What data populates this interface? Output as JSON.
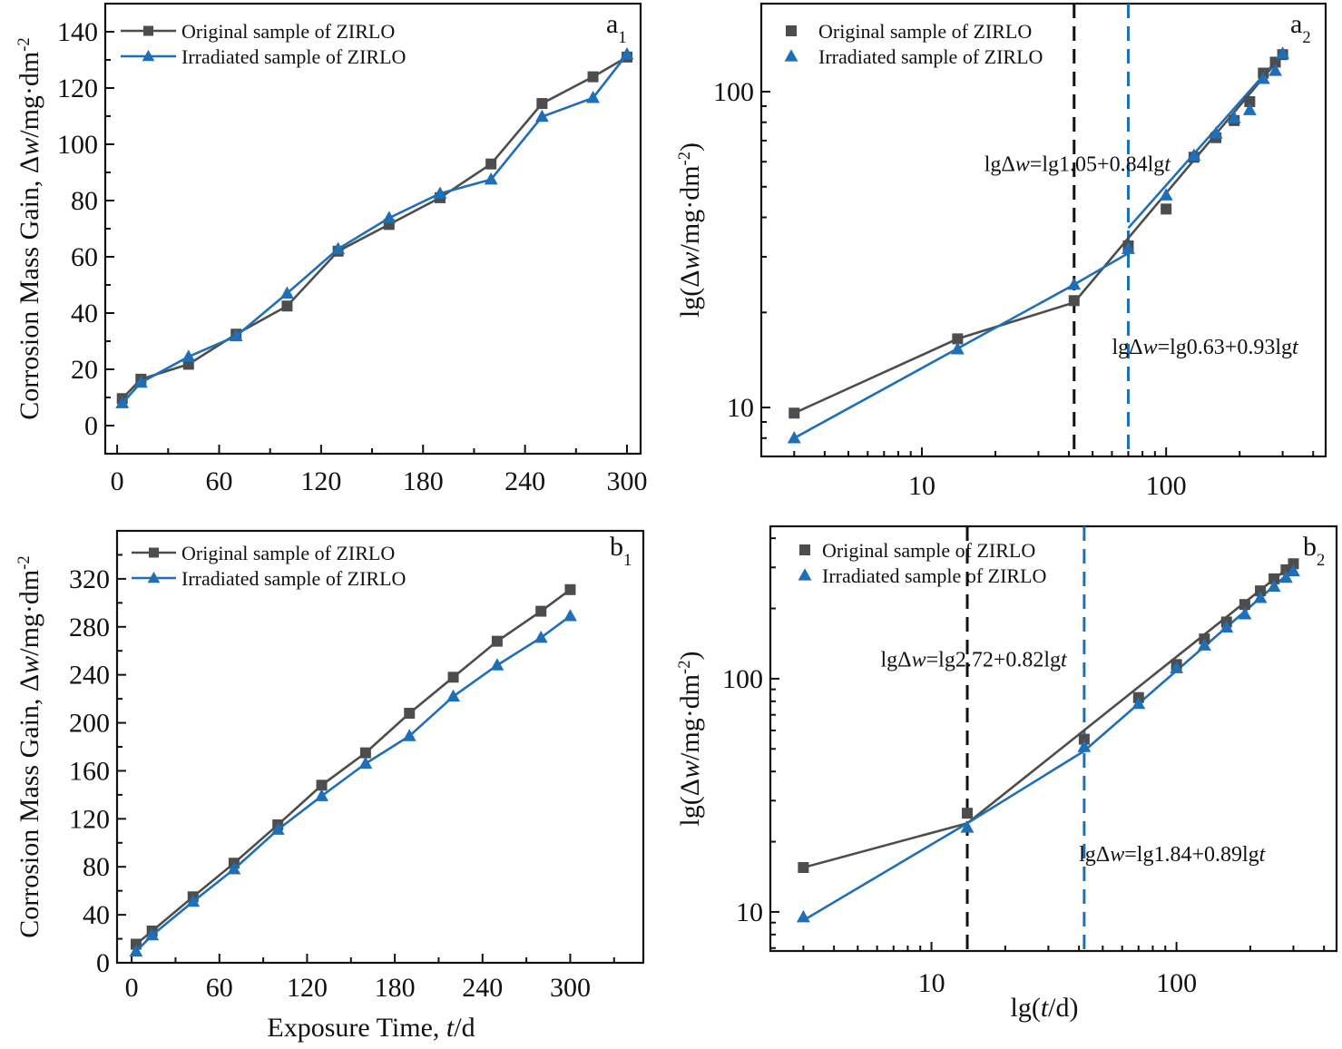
{
  "colors": {
    "original": "#4d4d4d",
    "irradiated": "#1f6fb8",
    "black_dash": "#111111",
    "blue_dash": "#1f6fb8",
    "axis": "#111111"
  },
  "chart_data": [
    {
      "id": "a1",
      "type": "line",
      "panel_label": "a",
      "panel_sub": "1",
      "xlabel": "",
      "ylabel": "Corrosion Mass Gain, Δw/mg·dm⁻²",
      "ylabel_parts": {
        "pre": "Corrosion Mass Gain, Δ",
        "italic": "w",
        "post": "/mg·dm",
        "sup": "-2"
      },
      "xscale": "linear",
      "yscale": "linear",
      "xlim": [
        -7,
        308
      ],
      "ylim": [
        -10,
        150
      ],
      "xticks": [
        0,
        60,
        120,
        180,
        240,
        300
      ],
      "xtick_labels": [
        "0",
        "60",
        "120",
        "180",
        "240",
        "300"
      ],
      "yticks": [
        0,
        20,
        40,
        60,
        80,
        100,
        120,
        140
      ],
      "ytick_labels": [
        "0",
        "20",
        "40",
        "60",
        "80",
        "100",
        "120",
        "140"
      ],
      "legend": {
        "position": "top-left",
        "style": "line"
      },
      "x": [
        3,
        14,
        42,
        70,
        100,
        130,
        160,
        190,
        220,
        250,
        280,
        300
      ],
      "series": [
        {
          "name": "Original sample of ZIRLO",
          "marker": "square",
          "values": [
            9.6,
            16.5,
            21.8,
            32.5,
            42.5,
            62,
            71.5,
            81,
            93,
            114.5,
            124,
            131
          ]
        },
        {
          "name": "Irradiated sample of ZIRLO",
          "marker": "triangle",
          "values": [
            8,
            15.3,
            24.5,
            31.8,
            47,
            62.8,
            73.8,
            82.5,
            87.5,
            109.8,
            116.5,
            132
          ]
        }
      ],
      "fits": [],
      "vlines": [],
      "annotations": []
    },
    {
      "id": "a2",
      "type": "scatter",
      "panel_label": "a",
      "panel_sub": "2",
      "xlabel": "",
      "ylabel": "lg(Δw/mg·dm⁻²)",
      "ylabel_parts": {
        "pre": "lg(Δ",
        "italic": "w",
        "post": "/mg·dm",
        "sup": "-2",
        "close": ")"
      },
      "xscale": "log",
      "yscale": "log",
      "xlim": [
        2.2,
        450
      ],
      "ylim": [
        7.0,
        190
      ],
      "xticks": [
        10,
        100
      ],
      "xtick_labels": [
        "10",
        "100"
      ],
      "yticks": [
        10,
        100
      ],
      "ytick_labels": [
        "10",
        "100"
      ],
      "legend": {
        "position": "top-left",
        "style": "marker"
      },
      "x": [
        3,
        14,
        42,
        70,
        100,
        130,
        160,
        190,
        220,
        250,
        280,
        300
      ],
      "series": [
        {
          "name": "Original sample of ZIRLO",
          "marker": "square",
          "values": [
            9.6,
            16.5,
            21.8,
            32.5,
            42.5,
            62,
            71.5,
            81,
            93,
            114.5,
            124,
            131
          ]
        },
        {
          "name": "Irradiated sample of ZIRLO",
          "marker": "triangle",
          "values": [
            8,
            15.3,
            24.5,
            31.8,
            47,
            62.8,
            73.8,
            82.5,
            87.5,
            109.8,
            116.5,
            132
          ]
        }
      ],
      "fits": [
        {
          "series": 0,
          "points": [
            [
              3,
              9.6
            ],
            [
              14,
              16.5
            ],
            [
              42,
              21.5
            ],
            [
              300,
              131
            ]
          ]
        },
        {
          "series": 1,
          "points": [
            [
              3,
              8
            ],
            [
              42,
              24.5
            ],
            [
              70,
              30.8
            ]
          ]
        },
        {
          "series": 1,
          "points": [
            [
              70,
              37
            ],
            [
              300,
              132
            ]
          ]
        }
      ],
      "vlines": [
        {
          "x": 42,
          "color": "black"
        },
        {
          "x": 70,
          "color": "blue"
        }
      ],
      "annotations": [
        {
          "pre": "lgΔ",
          "italic": "w",
          "mid": "=lg1.05+0.84lg",
          "italic2": "t",
          "anchor_x": 18,
          "anchor_y": 56
        },
        {
          "pre": "lgΔ",
          "italic": "w",
          "mid": "=lg0.63+0.93lg",
          "italic2": "t",
          "anchor_x": 60,
          "anchor_y": 14.8
        }
      ]
    },
    {
      "id": "b1",
      "type": "line",
      "panel_label": "b",
      "panel_sub": "1",
      "xlabel": "Exposure Time, t/d",
      "xlabel_parts": {
        "pre": "Exposure Time, ",
        "italic": "t",
        "post": "/d"
      },
      "ylabel": "Corrosion Mass Gain, Δw/mg·dm⁻²",
      "ylabel_parts": {
        "pre": "Corrosion Mass Gain, Δ",
        "italic": "w",
        "post": "/mg·dm",
        "sup": "-2"
      },
      "xscale": "linear",
      "yscale": "linear",
      "xlim": [
        -10,
        350
      ],
      "ylim": [
        0,
        360
      ],
      "xticks": [
        0,
        60,
        120,
        180,
        240,
        300
      ],
      "xtick_labels": [
        "0",
        "60",
        "120",
        "180",
        "240",
        "300"
      ],
      "yticks": [
        0,
        40,
        80,
        120,
        160,
        200,
        240,
        280,
        320
      ],
      "ytick_labels": [
        "0",
        "40",
        "80",
        "120",
        "160",
        "200",
        "240",
        "280",
        "320"
      ],
      "legend": {
        "position": "top-left",
        "style": "line"
      },
      "x": [
        3,
        14,
        42,
        70,
        100,
        130,
        160,
        190,
        220,
        250,
        280,
        300
      ],
      "series": [
        {
          "name": "Original sample of ZIRLO",
          "marker": "square",
          "values": [
            15.5,
            26.5,
            55,
            83,
            115,
            148,
            175,
            208,
            238,
            268,
            293,
            311
          ]
        },
        {
          "name": "Irradiated sample of ZIRLO",
          "marker": "triangle",
          "values": [
            9.5,
            23,
            51,
            78,
            111,
            139,
            166,
            189,
            222,
            248,
            271,
            289
          ]
        }
      ],
      "fits": [],
      "vlines": [],
      "annotations": []
    },
    {
      "id": "b2",
      "type": "scatter",
      "panel_label": "b",
      "panel_sub": "2",
      "xlabel": "lg(t/d)",
      "xlabel_parts": {
        "pre": "lg(",
        "italic": "t",
        "post": "/d)"
      },
      "ylabel": "lg(Δw/mg·dm⁻²)",
      "ylabel_parts": {
        "pre": "lg(Δ",
        "italic": "w",
        "post": "/mg·dm",
        "sup": "-2",
        "close": ")"
      },
      "xscale": "log",
      "yscale": "log",
      "xlim": [
        2.2,
        450
      ],
      "ylim": [
        6.8,
        450
      ],
      "xticks": [
        10,
        100
      ],
      "xtick_labels": [
        "10",
        "100"
      ],
      "yticks": [
        10,
        100
      ],
      "ytick_labels": [
        "10",
        "100"
      ],
      "legend": {
        "position": "top-left",
        "style": "marker"
      },
      "x": [
        3,
        14,
        42,
        70,
        100,
        130,
        160,
        190,
        220,
        250,
        280,
        300
      ],
      "series": [
        {
          "name": "Original sample of ZIRLO",
          "marker": "square",
          "values": [
            15.5,
            26.5,
            55,
            83,
            115,
            148,
            175,
            208,
            238,
            268,
            293,
            311
          ]
        },
        {
          "name": "Irradiated sample of ZIRLO",
          "marker": "triangle",
          "values": [
            9.5,
            23,
            51,
            78,
            111,
            139,
            166,
            189,
            222,
            248,
            271,
            289
          ]
        }
      ],
      "fits": [
        {
          "series": 0,
          "points": [
            [
              3,
              15.5
            ],
            [
              14,
              24
            ],
            [
              300,
              311
            ]
          ]
        },
        {
          "series": 1,
          "points": [
            [
              3,
              9.2
            ],
            [
              14,
              24
            ],
            [
              42,
              49
            ],
            [
              300,
              295
            ]
          ]
        }
      ],
      "vlines": [
        {
          "x": 14,
          "color": "black"
        },
        {
          "x": 42,
          "color": "blue"
        }
      ],
      "annotations": [
        {
          "pre": "lgΔ",
          "italic": "w",
          "mid": "=lg2.72+0.82lg",
          "italic2": "t",
          "anchor_x": 6.2,
          "anchor_y": 113
        },
        {
          "pre": "lgΔ",
          "italic": "w",
          "mid": "=lg1.84+0.89lg",
          "italic2": "t",
          "anchor_x": 40,
          "anchor_y": 16.5
        }
      ]
    }
  ]
}
